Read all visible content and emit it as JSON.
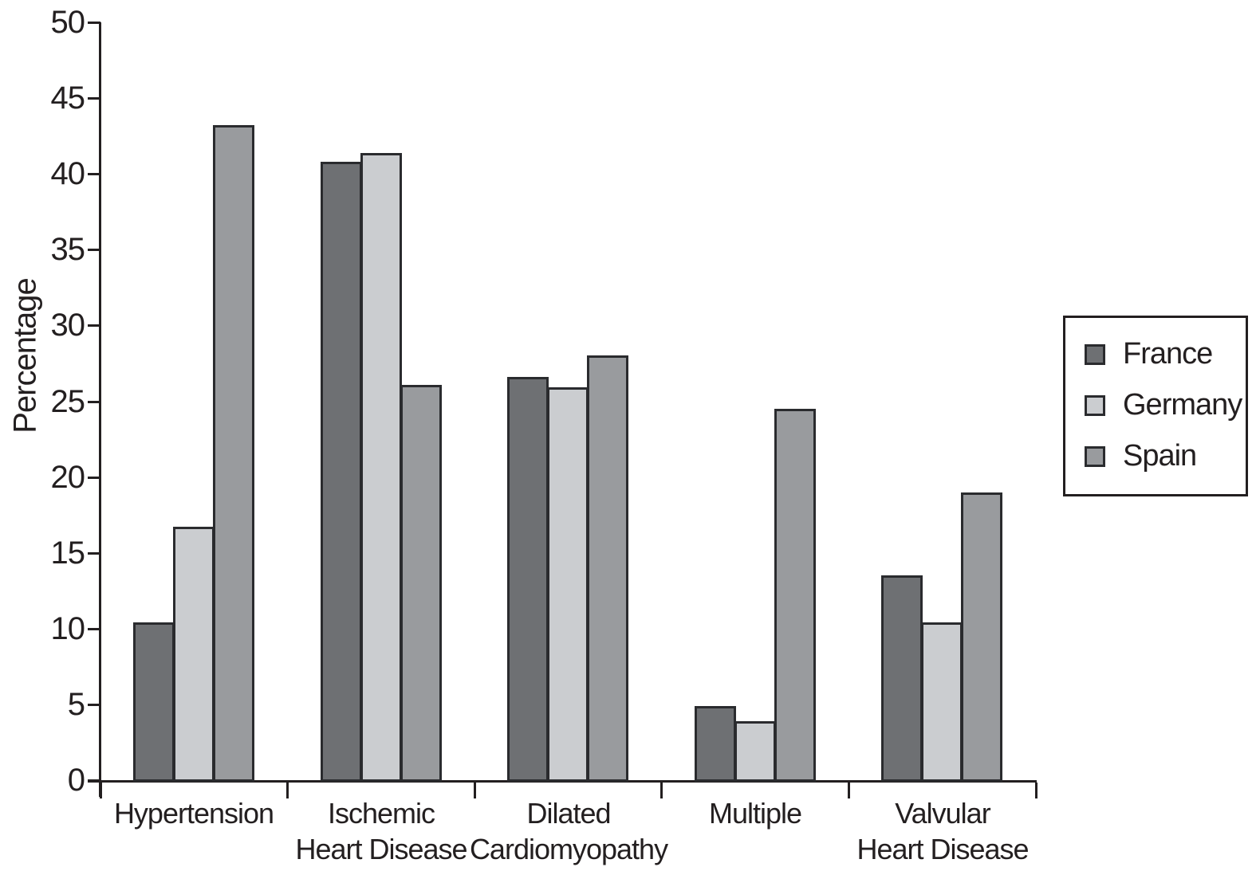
{
  "chart_data": {
    "type": "bar",
    "title": "",
    "xlabel": "",
    "ylabel": "Percentage",
    "ylim": [
      0,
      50
    ],
    "yticks": [
      0,
      5,
      10,
      15,
      20,
      25,
      30,
      35,
      40,
      45,
      50
    ],
    "grid": false,
    "legend_position": "right",
    "categories": [
      "Hypertension",
      "Ischemic\nHeart Disease",
      "Dilated\nCardiomyopathy",
      "Multiple",
      "Valvular\nHeart Disease"
    ],
    "series": [
      {
        "name": "France",
        "color": "#6E7073",
        "values": [
          10.4,
          40.8,
          26.6,
          4.9,
          13.5
        ]
      },
      {
        "name": "Germany",
        "color": "#CBCDD0",
        "values": [
          16.7,
          41.4,
          25.9,
          3.9,
          10.4
        ]
      },
      {
        "name": "Spain",
        "color": "#999B9E",
        "values": [
          43.2,
          26.1,
          28.0,
          24.5,
          19.0
        ]
      }
    ],
    "colors": {
      "axis": "#231F20",
      "bar_border": "#2A2B2E",
      "text": "#231F20",
      "background": "#FFFFFF"
    }
  }
}
